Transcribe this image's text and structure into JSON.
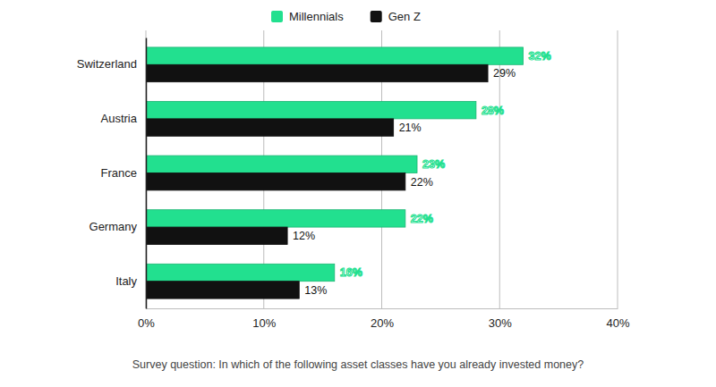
{
  "chart_data": {
    "type": "bar",
    "orientation": "horizontal",
    "categories": [
      "Switzerland",
      "Austria",
      "France",
      "Germany",
      "Italy"
    ],
    "series": [
      {
        "name": "Millennials",
        "color": "#22e08f",
        "values": [
          32,
          28,
          23,
          22,
          16
        ],
        "value_labels": [
          "32%",
          "28%",
          "23%",
          "22%",
          "16%"
        ]
      },
      {
        "name": "Gen Z",
        "color": "#111111",
        "values": [
          29,
          21,
          22,
          12,
          13
        ],
        "value_labels": [
          "29%",
          "21%",
          "22%",
          "12%",
          "13%"
        ]
      }
    ],
    "xlim": [
      0,
      40
    ],
    "xticks": [
      {
        "value": 0,
        "label": "0%"
      },
      {
        "value": 10,
        "label": "10%"
      },
      {
        "value": 20,
        "label": "20%"
      },
      {
        "value": 30,
        "label": "30%"
      },
      {
        "value": 40,
        "label": "40%"
      }
    ],
    "xlabel": "Survey question: In which of the following asset classes have you already invested money?",
    "grid": true,
    "legend": "top",
    "data_labels": true
  }
}
